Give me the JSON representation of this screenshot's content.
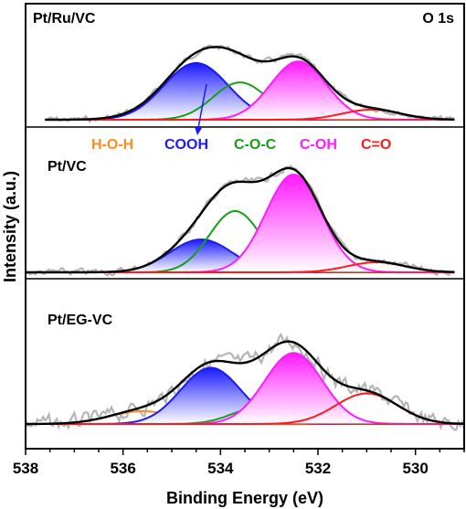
{
  "chart_data": {
    "type": "line",
    "title": "",
    "xlabel": "Binding Energy (eV)",
    "ylabel": "Intensity (a.u.)",
    "xlim": [
      538,
      529
    ],
    "x_reversed": true,
    "x_ticks": [
      538,
      536,
      534,
      532,
      530
    ],
    "y_ticks_shown": false,
    "annotation": "O 1s",
    "legend": {
      "placement": "middle",
      "entries": [
        {
          "name": "H-O-H",
          "color": "#ff8c1a"
        },
        {
          "name": "COOH",
          "color": "#1a1aff"
        },
        {
          "name": "C-O-C",
          "color": "#14a014"
        },
        {
          "name": "C-OH",
          "color": "#ff1aff"
        },
        {
          "name": "C=O",
          "color": "#ff1a1a"
        }
      ]
    },
    "panels": [
      {
        "name": "Pt/Ru/VC",
        "components": [
          {
            "name": "H-O-H",
            "center": 535.5,
            "fwhm": 1.4,
            "height": 0.03
          },
          {
            "name": "COOH",
            "center": 534.5,
            "fwhm": 1.55,
            "height": 0.73
          },
          {
            "name": "C-O-C",
            "center": 533.6,
            "fwhm": 1.3,
            "height": 0.48
          },
          {
            "name": "C-OH",
            "center": 532.4,
            "fwhm": 1.35,
            "height": 0.75
          },
          {
            "name": "C=O",
            "center": 530.9,
            "fwhm": 1.4,
            "height": 0.13
          }
        ]
      },
      {
        "name": "Pt/VC",
        "components": [
          {
            "name": "H-O-H",
            "center": 535.5,
            "fwhm": 1.4,
            "height": 0.0
          },
          {
            "name": "COOH",
            "center": 534.4,
            "fwhm": 1.5,
            "height": 0.36
          },
          {
            "name": "C-O-C",
            "center": 533.7,
            "fwhm": 1.25,
            "height": 0.67
          },
          {
            "name": "C-OH",
            "center": 532.5,
            "fwhm": 1.35,
            "height": 1.07
          },
          {
            "name": "C=O",
            "center": 530.8,
            "fwhm": 1.4,
            "height": 0.11
          }
        ]
      },
      {
        "name": "Pt/EG-VC",
        "components": [
          {
            "name": "H-O-H",
            "center": 535.6,
            "fwhm": 1.6,
            "height": 0.13
          },
          {
            "name": "COOH",
            "center": 534.2,
            "fwhm": 1.45,
            "height": 0.57
          },
          {
            "name": "C-O-C",
            "center": 533.2,
            "fwhm": 1.3,
            "height": 0.17
          },
          {
            "name": "C-OH",
            "center": 532.5,
            "fwhm": 1.4,
            "height": 0.72
          },
          {
            "name": "C=O",
            "center": 531.0,
            "fwhm": 1.5,
            "height": 0.31
          }
        ]
      }
    ]
  }
}
